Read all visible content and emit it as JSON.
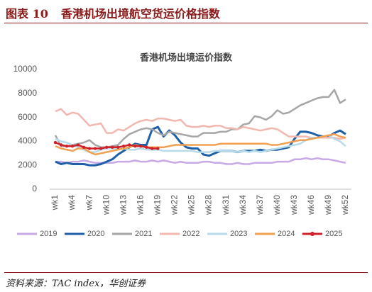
{
  "header": {
    "label": "图表 10",
    "title": "香港机场出境航空货运价格指数"
  },
  "source": "资料来源：TAC index，华创证券",
  "chart_data": {
    "type": "line",
    "title": "香港机场出境运价指数",
    "categories": [
      "wk1",
      null,
      null,
      "wk4",
      null,
      null,
      "wk7",
      null,
      null,
      "wk10",
      null,
      null,
      "wk13",
      null,
      null,
      "wk16",
      null,
      null,
      "wk19",
      null,
      null,
      "wk22",
      null,
      null,
      "wk25",
      null,
      null,
      "wk28",
      null,
      null,
      "wk31",
      null,
      null,
      "wk34",
      null,
      null,
      "wk37",
      null,
      null,
      "wk40",
      null,
      null,
      "wk43",
      null,
      null,
      "wk46",
      null,
      null,
      "wk49",
      null,
      null,
      "wk52"
    ],
    "ylim": [
      0,
      10000
    ],
    "yticks": [
      0,
      2000,
      4000,
      6000,
      8000,
      10000
    ],
    "grid": false,
    "legend": "bottom",
    "series": [
      {
        "name": "2019",
        "color": "#c9a8e8",
        "values": [
          2300,
          2300,
          2200,
          2300,
          2300,
          2400,
          2300,
          2200,
          2200,
          2200,
          2200,
          2300,
          2300,
          2300,
          2400,
          2300,
          2300,
          2400,
          2300,
          2400,
          2300,
          2200,
          2300,
          2200,
          2200,
          2200,
          2300,
          2300,
          2200,
          2200,
          2100,
          2100,
          2200,
          2100,
          2100,
          2200,
          2200,
          2200,
          2200,
          2300,
          2300,
          2300,
          2500,
          2500,
          2600,
          2500,
          2600,
          2500,
          2500,
          2400,
          2300,
          2200
        ]
      },
      {
        "name": "2020",
        "color": "#1f5fa8",
        "values": [
          2300,
          2100,
          2200,
          2100,
          2100,
          2100,
          2000,
          2000,
          2100,
          2300,
          2500,
          2900,
          3200,
          3500,
          3800,
          3700,
          3700,
          5000,
          5200,
          4400,
          4900,
          4500,
          3900,
          3500,
          3400,
          3400,
          2900,
          2800,
          3000,
          3200,
          3200,
          3200,
          3100,
          3200,
          3200,
          3200,
          3300,
          3200,
          3300,
          3300,
          3400,
          3500,
          4200,
          4800,
          4800,
          4700,
          4500,
          4400,
          4400,
          4700,
          4900,
          4600
        ]
      },
      {
        "name": "2021",
        "color": "#a6a6a6",
        "values": [
          4500,
          3600,
          3600,
          3700,
          3800,
          3900,
          4100,
          3700,
          3500,
          3500,
          3600,
          3700,
          4200,
          4600,
          4800,
          5000,
          5100,
          5000,
          4700,
          4500,
          4800,
          4700,
          4600,
          4500,
          4400,
          4400,
          4700,
          4700,
          4700,
          4800,
          4800,
          5000,
          5000,
          5400,
          5500,
          6100,
          6000,
          5800,
          6100,
          6600,
          6300,
          6400,
          6700,
          7000,
          7200,
          7400,
          7600,
          7700,
          7700,
          8300,
          7200,
          7500
        ]
      },
      {
        "name": "2022",
        "color": "#f2b8b0",
        "values": [
          6500,
          6700,
          6200,
          6400,
          6300,
          5800,
          5300,
          5400,
          5500,
          4700,
          4700,
          5000,
          4900,
          5200,
          5500,
          5700,
          5800,
          5700,
          5900,
          5900,
          5800,
          5700,
          5800,
          5300,
          5200,
          5200,
          5300,
          5200,
          5300,
          5300,
          5100,
          5100,
          5000,
          5200,
          5100,
          5000,
          4900,
          5000,
          5100,
          5000,
          4700,
          4400,
          4400,
          4400,
          4400,
          4300,
          4300,
          4300,
          4300,
          4300,
          4200,
          4300
        ]
      },
      {
        "name": "2023",
        "color": "#b7dbe8",
        "values": [
          4200,
          4000,
          3900,
          3700,
          3500,
          3300,
          3100,
          3100,
          3300,
          3400,
          3400,
          3400,
          3400,
          3300,
          3300,
          3400,
          3300,
          3300,
          3300,
          3200,
          3200,
          3200,
          3200,
          3200,
          3200,
          3100,
          3100,
          3100,
          3200,
          3200,
          3200,
          3200,
          3100,
          3200,
          3100,
          3200,
          3100,
          3200,
          3300,
          3400,
          3500,
          3600,
          3700,
          3800,
          4100,
          4300,
          4300,
          4400,
          4500,
          4200,
          4000,
          3600
        ]
      },
      {
        "name": "2024",
        "color": "#f0a050",
        "values": [
          3600,
          3400,
          3300,
          3200,
          3400,
          3400,
          3100,
          2900,
          3000,
          3100,
          3200,
          3300,
          3400,
          3500,
          3700,
          3600,
          3500,
          3500,
          3500,
          3500,
          3600,
          3700,
          3700,
          3700,
          3700,
          3700,
          3700,
          3700,
          3700,
          3800,
          3800,
          3800,
          3800,
          3800,
          3800,
          3800,
          3800,
          3800,
          3700,
          3700,
          3800,
          3900,
          4000,
          4100,
          4100,
          4200,
          4300,
          4400,
          4500,
          4600,
          4400,
          4300
        ]
      },
      {
        "name": "2025",
        "color": "#d0202a",
        "marker": true,
        "values": [
          3900,
          3700,
          3600,
          3600,
          3700,
          3500,
          3400,
          3400,
          3400,
          3500,
          3500,
          3500,
          3600,
          3700,
          3600,
          3600,
          3500,
          3400,
          3400,
          null,
          null,
          null,
          null,
          null,
          null,
          null,
          null,
          null,
          null,
          null,
          null,
          null,
          null,
          null,
          null,
          null,
          null,
          null,
          null,
          null,
          null,
          null,
          null,
          null,
          null,
          null,
          null,
          null,
          null,
          null,
          null,
          null
        ]
      }
    ]
  }
}
